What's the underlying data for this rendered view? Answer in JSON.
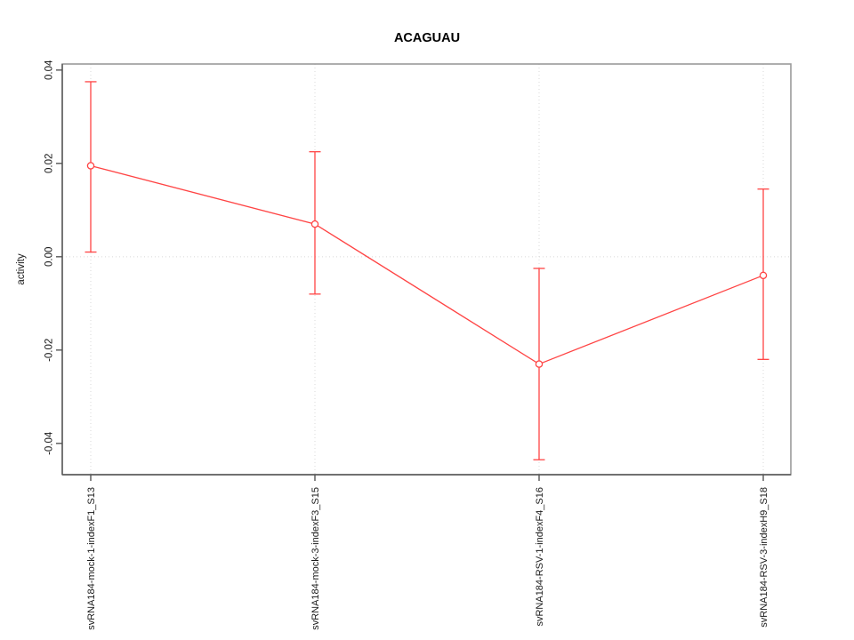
{
  "chart_data": {
    "type": "line",
    "title": "ACAGUAU",
    "xlabel": "",
    "ylabel": "activity",
    "categories": [
      "svRNA184-mock-1-indexF1_S13",
      "svRNA184-mock-3-indexF3_S15",
      "svRNA184-RSV-1-indexF4_S16",
      "svRNA184-RSV-3-indexH9_S18"
    ],
    "series": [
      {
        "name": "activity",
        "values": [
          0.0195,
          0.007,
          -0.023,
          -0.004
        ],
        "error_upper": [
          0.0375,
          0.0225,
          -0.0025,
          0.0145
        ],
        "error_lower": [
          0.001,
          -0.008,
          -0.0435,
          -0.022
        ]
      }
    ],
    "ylim": [
      -0.0467,
      0.0413
    ],
    "yticks": [
      -0.04,
      -0.02,
      0,
      0.02,
      0.04
    ],
    "grid": {
      "vertical_at_categories": true,
      "horizontal_at_zero": true,
      "style": "dotted"
    },
    "legend": "none",
    "marker": "open-circle",
    "colors": {
      "series": "#ff4444",
      "grid": "#d8d8d8",
      "box": "#9a9a9a",
      "axis": "#555555",
      "text": "#1a1a1a",
      "title": "#000000",
      "background": "#ffffff"
    }
  }
}
